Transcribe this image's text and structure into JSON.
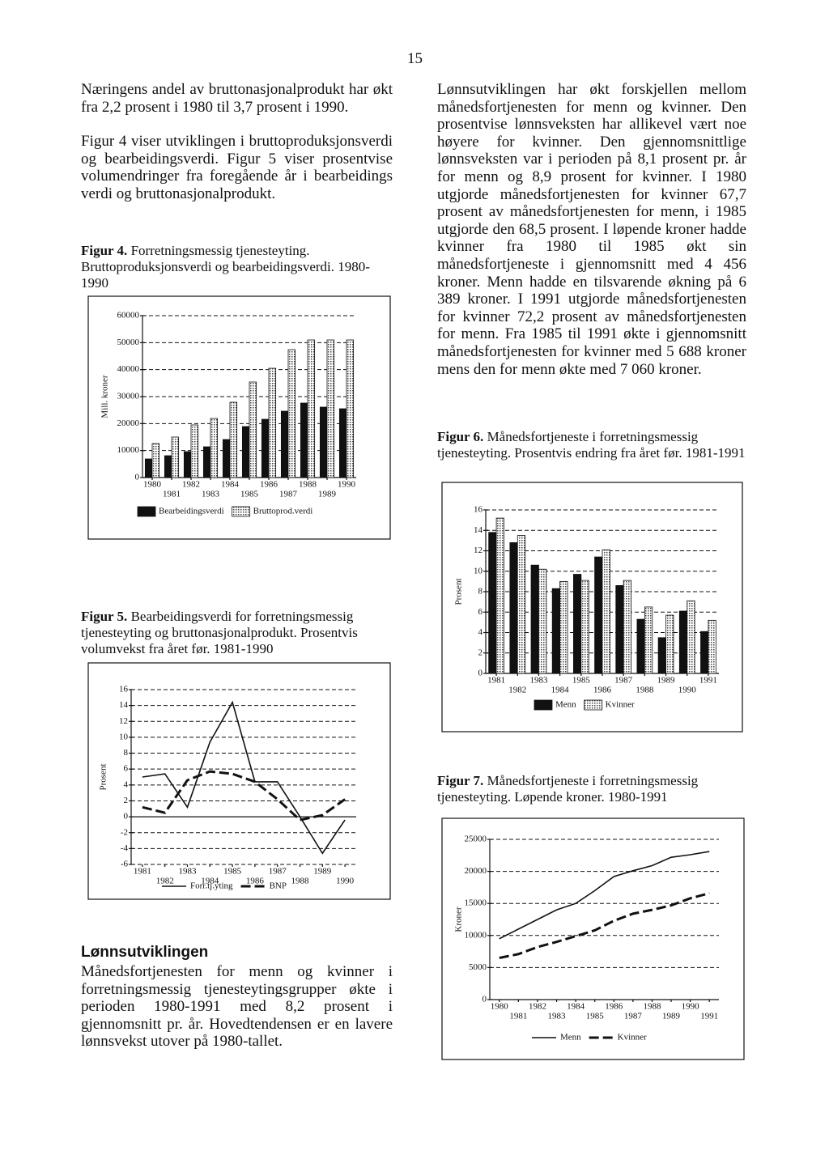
{
  "page_number": "15",
  "left_column": {
    "paragraphs": [
      "Næringens andel av bruttonasjonalprodukt har økt fra 2,2 prosent i 1980 til 3,7 prosent i 1990.",
      "Figur 4 viser utviklingen i bruttoproduksjonsverdi og bearbeidingsverdi. Figur 5 viser prosentvise volumendringer fra foregående år i bearbeidings verdi og bruttonasjonalprodukt."
    ]
  },
  "section": {
    "heading": "Lønnsutviklingen",
    "paragraph": "Månedsfortjenesten for menn og kvinner i forretningsmessig tjenesteytingsgrupper økte i perioden 1980-1991 med 8,2 prosent i gjennomsnitt pr. år. Hovedtendensen er en lavere lønnsvekst utover på 1980-tallet."
  },
  "right_column": {
    "paragraphs": [
      "Lønnsutviklingen har økt forskjellen mellom månedsfortjenesten for menn og kvinner. Den prosentvise lønnsveksten har allikevel vært noe høyere for kvinner. Den gjennomsnittlige lønnsveksten var i perioden på 8,1 prosent pr. år for menn og 8,9 prosent for kvinner. I 1980 utgjorde månedsfortjenesten for kvinner 67,7 prosent av månedsfortjenesten for menn, i 1985 utgjorde den 68,5 prosent. I løpende kroner hadde kvinner fra 1980 til 1985 økt sin månedsfortjeneste i gjennomsnitt med 4 456 kroner. Menn hadde en tilsvarende økning på 6 389 kroner. I 1991 utgjorde månedsfortjenesten for kvinner 72,2 prosent av månedsfortjenesten for menn. Fra 1985 til 1991 økte i gjennomsnitt månedsfortjenesten for kvinner med 5 688 kroner mens den for menn økte med 7 060 kroner."
    ]
  },
  "chart_data": [
    {
      "type": "bar",
      "figure_label": "Figur 4.",
      "title": "Forretningsmessig tjenesteyting. Bruttoproduksjonsverdi og bearbeidingsverdi. 1980-1990",
      "ylabel": "Mill. kroner",
      "categories": [
        "1980",
        "1981",
        "1982",
        "1983",
        "1984",
        "1985",
        "1986",
        "1987",
        "1988",
        "1989",
        "1990"
      ],
      "series": [
        {
          "name": "Bearbeidingsverdi",
          "color": "#111111",
          "values": [
            6900,
            8100,
            9600,
            11400,
            14100,
            18900,
            21600,
            24600,
            27600,
            26100,
            25500
          ]
        },
        {
          "name": "Bruttoprod.verdi",
          "color": "#cccccc",
          "pattern": "dotted",
          "values": [
            12600,
            15000,
            19500,
            21900,
            27900,
            35400,
            40500,
            47400,
            51000,
            51000,
            51000
          ]
        }
      ],
      "ylim": [
        0,
        60000
      ],
      "yticks": [
        0,
        10000,
        20000,
        30000,
        40000,
        50000,
        60000
      ],
      "grid": true
    },
    {
      "type": "line",
      "figure_label": "Figur 5.",
      "title": "Bearbeidingsverdi for forretningsmessig tjenesteyting og bruttonasjonalprodukt. Prosentvis volumvekst fra året før. 1981-1990",
      "ylabel": "Prosent",
      "categories": [
        "1981",
        "1982",
        "1983",
        "1984",
        "1985",
        "1986",
        "1987",
        "1988",
        "1989",
        "1990"
      ],
      "series": [
        {
          "name": "Forr.tj.yting",
          "color": "#111111",
          "line_style": "solid",
          "values": [
            5.0,
            5.4,
            1.2,
            9.4,
            14.4,
            4.4,
            4.4,
            0,
            -4.6,
            -0.4
          ]
        },
        {
          "name": "BNP",
          "color": "#111111",
          "line_style": "dashed",
          "values": [
            1.2,
            0.5,
            4.6,
            5.7,
            5.4,
            4.4,
            2.2,
            -0.4,
            0.2,
            2.2
          ]
        }
      ],
      "ylim": [
        -6,
        16
      ],
      "yticks": [
        -6,
        -4,
        -2,
        0,
        2,
        4,
        6,
        8,
        10,
        12,
        14,
        16
      ],
      "grid": true
    },
    {
      "type": "bar",
      "figure_label": "Figur 6.",
      "title": "Månedsfortjeneste i forretningsmessig tjenesteyting. Prosentvis endring fra året før. 1981-1991",
      "ylabel": "Prosent",
      "categories": [
        "1981",
        "1982",
        "1983",
        "1984",
        "1985",
        "1986",
        "1987",
        "1988",
        "1989",
        "1990",
        "1991"
      ],
      "series": [
        {
          "name": "Menn",
          "color": "#111111",
          "values": [
            13.8,
            12.8,
            10.6,
            8.3,
            9.7,
            11.4,
            8.6,
            5.3,
            3.5,
            6.1,
            4.1
          ]
        },
        {
          "name": "Kvinner",
          "color": "#cccccc",
          "pattern": "dotted",
          "values": [
            15.2,
            13.5,
            10.2,
            9.0,
            9.1,
            12.1,
            9.1,
            6.5,
            5.7,
            7.1,
            5.2
          ]
        }
      ],
      "ylim": [
        0,
        16
      ],
      "yticks": [
        0,
        2,
        4,
        6,
        8,
        10,
        12,
        14,
        16
      ],
      "grid": true
    },
    {
      "type": "line",
      "figure_label": "Figur 7.",
      "title": "Månedsfortjeneste i forretningsmessig tjenesteyting. Løpende kroner. 1980-1991",
      "ylabel": "Kroner",
      "categories": [
        "1980",
        "1981",
        "1982",
        "1983",
        "1984",
        "1985",
        "1986",
        "1987",
        "1988",
        "1989",
        "1990",
        "1991"
      ],
      "series": [
        {
          "name": "Menn",
          "color": "#111111",
          "line_style": "solid",
          "values": [
            9500,
            11000,
            12500,
            14000,
            15000,
            17000,
            19200,
            20100,
            20900,
            22200,
            22600,
            23100
          ]
        },
        {
          "name": "Kvinner",
          "color": "#111111",
          "line_style": "dashed",
          "values": [
            6500,
            7100,
            8200,
            9000,
            9900,
            10800,
            12300,
            13400,
            14000,
            14700,
            15800,
            16600
          ]
        }
      ],
      "ylim": [
        0,
        25000
      ],
      "yticks": [
        0,
        5000,
        10000,
        15000,
        20000,
        25000
      ],
      "grid": true
    }
  ]
}
